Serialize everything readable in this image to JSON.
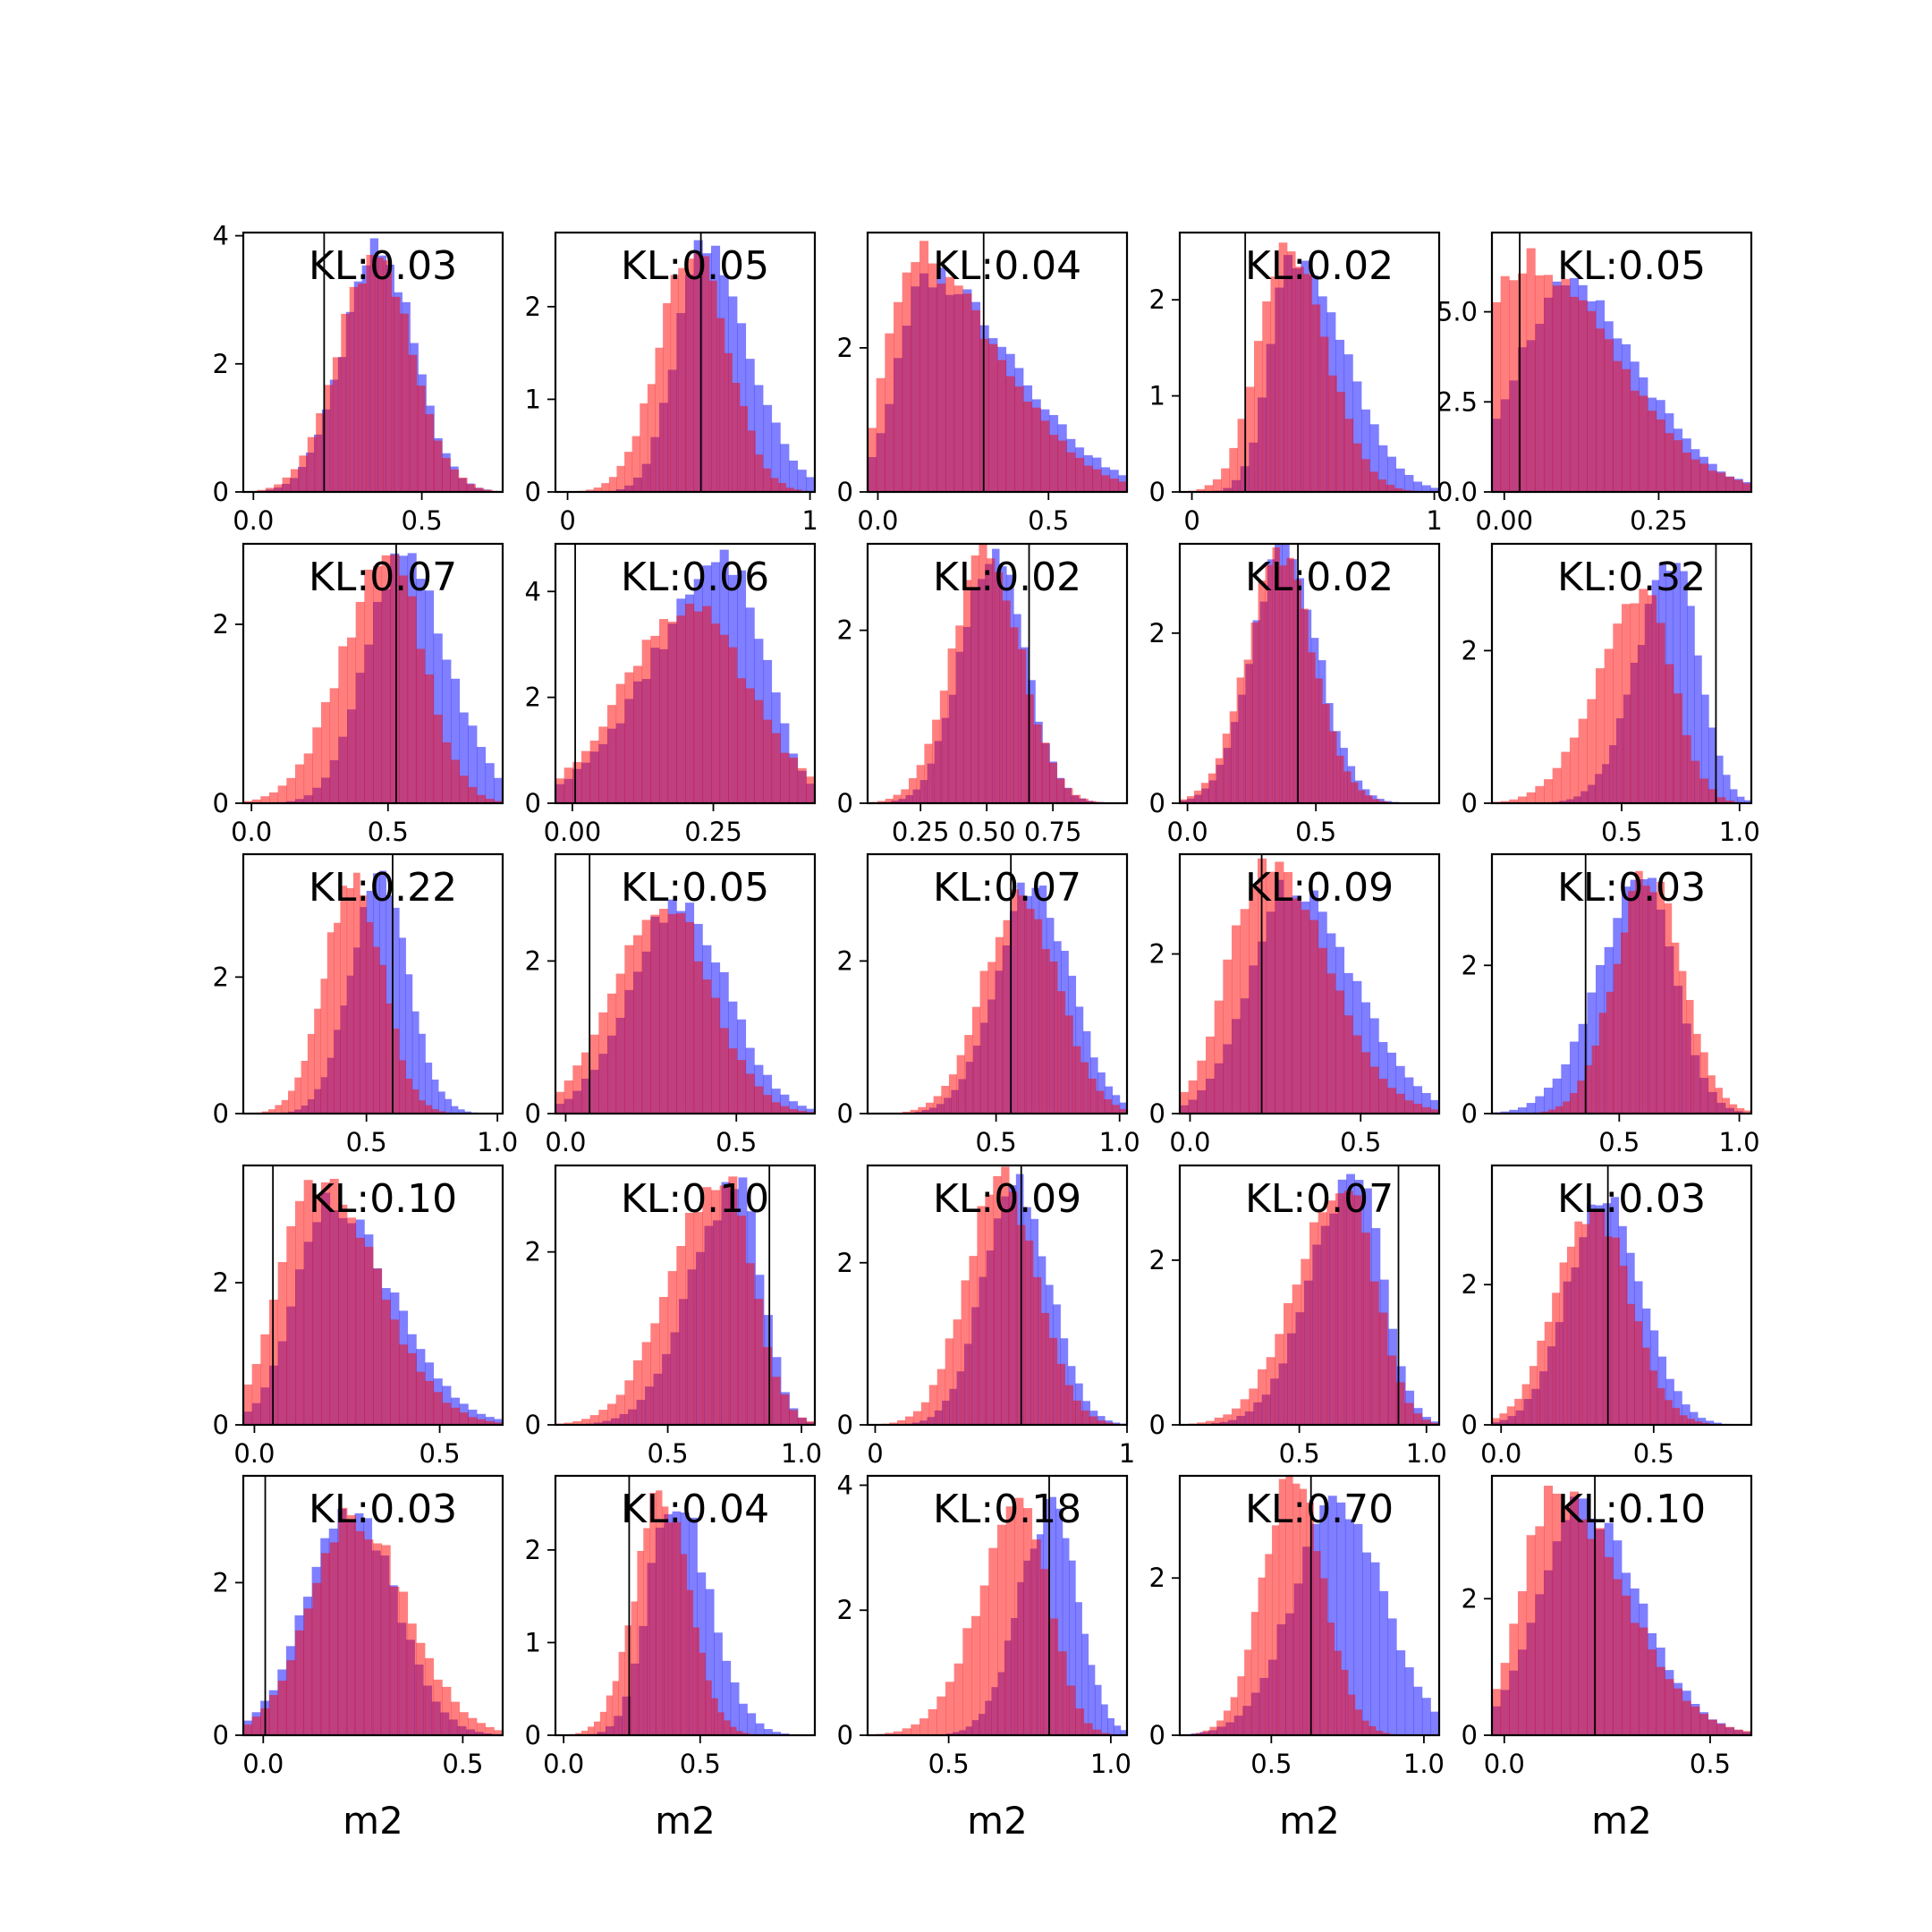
{
  "colors": {
    "red": "#ff0000",
    "blue": "#0000ff",
    "frame": "#000000"
  },
  "chart_data": {
    "type": "histogram-grid",
    "rows": 5,
    "cols": 5,
    "xlabel": "m2",
    "panels": [
      {
        "kl": "KL:0.03",
        "xlim": [
          -0.03,
          0.74
        ],
        "ylim": [
          0,
          4.05
        ],
        "xticks": [
          0,
          0.5
        ],
        "xtick_labels": [
          "0.0",
          "0.5"
        ],
        "yticks": [
          0,
          2,
          4
        ],
        "ytick_labels": [
          "0",
          "2",
          "4"
        ],
        "vline": 0.21,
        "red": {
          "mean": 0.36,
          "sd": 0.11,
          "peak": 3.6,
          "skew": 0
        },
        "blue": {
          "mean": 0.37,
          "sd": 0.105,
          "peak": 3.8,
          "skew": 0
        }
      },
      {
        "kl": "KL:0.05",
        "xlim": [
          -0.05,
          1.02
        ],
        "ylim": [
          0,
          2.8
        ],
        "xticks": [
          0,
          1
        ],
        "xtick_labels": [
          "0",
          "1"
        ],
        "yticks": [
          0,
          1,
          2
        ],
        "ytick_labels": [
          "0",
          "1",
          "2"
        ],
        "vline": 0.55,
        "red": {
          "mean": 0.52,
          "sd": 0.14,
          "peak": 2.7,
          "skew": 0
        },
        "blue": {
          "mean": 0.56,
          "sd": 0.15,
          "peak": 2.6,
          "skew": 0.4
        }
      },
      {
        "kl": "KL:0.04",
        "xlim": [
          -0.03,
          0.73
        ],
        "ylim": [
          0,
          3.6
        ],
        "xticks": [
          0,
          0.5
        ],
        "xtick_labels": [
          "0.0",
          "0.5"
        ],
        "yticks": [
          0,
          2
        ],
        "ytick_labels": [
          "0",
          "2"
        ],
        "vline": 0.31,
        "red": {
          "mean": 0.1,
          "sd": 0.16,
          "peak": 3.3,
          "skew": 0.9
        },
        "blue": {
          "mean": 0.15,
          "sd": 0.17,
          "peak": 3.0,
          "skew": 0.8
        }
      },
      {
        "kl": "KL:0.02",
        "xlim": [
          -0.05,
          1.02
        ],
        "ylim": [
          0,
          2.7
        ],
        "xticks": [
          0,
          1
        ],
        "xtick_labels": [
          "0",
          "1"
        ],
        "yticks": [
          0,
          1,
          2
        ],
        "ytick_labels": [
          "0",
          "1",
          "2"
        ],
        "vline": 0.22,
        "red": {
          "mean": 0.4,
          "sd": 0.14,
          "peak": 2.5,
          "skew": 0.2
        },
        "blue": {
          "mean": 0.42,
          "sd": 0.15,
          "peak": 2.5,
          "skew": 0.6
        }
      },
      {
        "kl": "KL:0.05",
        "xlim": [
          -0.02,
          0.4
        ],
        "ylim": [
          0,
          7.2
        ],
        "xticks": [
          0,
          0.25
        ],
        "xtick_labels": [
          "0.00",
          "0.25"
        ],
        "yticks": [
          0,
          2.5,
          5
        ],
        "ytick_labels": [
          "0.0",
          "2.5",
          "5.0"
        ],
        "vline": 0.025,
        "red": {
          "mean": 0.03,
          "sd": 0.1,
          "peak": 6.5,
          "skew": 0.7
        },
        "blue": {
          "mean": 0.1,
          "sd": 0.1,
          "peak": 5.6,
          "skew": 0.3
        }
      },
      {
        "kl": "KL:0.07",
        "xlim": [
          -0.03,
          0.92
        ],
        "ylim": [
          0,
          2.9
        ],
        "xticks": [
          0,
          0.5
        ],
        "xtick_labels": [
          "0.0",
          "0.5"
        ],
        "yticks": [
          0,
          2
        ],
        "ytick_labels": [
          "0",
          "2"
        ],
        "vline": 0.53,
        "red": {
          "mean": 0.5,
          "sd": 0.15,
          "peak": 2.7,
          "skew": -0.2
        },
        "blue": {
          "mean": 0.55,
          "sd": 0.15,
          "peak": 2.7,
          "skew": 0.2
        }
      },
      {
        "kl": "KL:0.06",
        "xlim": [
          -0.03,
          0.43
        ],
        "ylim": [
          0,
          4.9
        ],
        "xticks": [
          0,
          0.25
        ],
        "xtick_labels": [
          "0.00",
          "0.25"
        ],
        "yticks": [
          0,
          2,
          4
        ],
        "ytick_labels": [
          "0",
          "2",
          "4"
        ],
        "vline": 0.005,
        "red": {
          "mean": 0.2,
          "sd": 0.11,
          "peak": 3.7,
          "skew": 0
        },
        "blue": {
          "mean": 0.28,
          "sd": 0.1,
          "peak": 4.5,
          "skew": -0.6
        }
      },
      {
        "kl": "KL:0.02",
        "xlim": [
          0.05,
          1.03
        ],
        "ylim": [
          0,
          3.0
        ],
        "xticks": [
          0.25,
          0.5,
          0.75
        ],
        "xtick_labels": [
          "0.25",
          "0.50",
          "0.75"
        ],
        "yticks": [
          0,
          2
        ],
        "ytick_labels": [
          "0",
          "2"
        ],
        "vline": 0.66,
        "red": {
          "mean": 0.5,
          "sd": 0.13,
          "peak": 2.9,
          "skew": 0
        },
        "blue": {
          "mean": 0.52,
          "sd": 0.12,
          "peak": 2.9,
          "skew": 0
        }
      },
      {
        "kl": "KL:0.02",
        "xlim": [
          -0.03,
          0.98
        ],
        "ylim": [
          0,
          3.05
        ],
        "xticks": [
          0,
          0.5
        ],
        "xtick_labels": [
          "0.0",
          "0.5"
        ],
        "yticks": [
          0,
          2
        ],
        "ytick_labels": [
          "0",
          "2"
        ],
        "vline": 0.43,
        "red": {
          "mean": 0.36,
          "sd": 0.13,
          "peak": 2.9,
          "skew": 0
        },
        "blue": {
          "mean": 0.38,
          "sd": 0.13,
          "peak": 3.0,
          "skew": 0
        }
      },
      {
        "kl": "KL:0.32",
        "xlim": [
          -0.05,
          1.05
        ],
        "ylim": [
          0,
          3.4
        ],
        "xticks": [
          0.5,
          1
        ],
        "xtick_labels": [
          "0.5",
          "1.0"
        ],
        "yticks": [
          0,
          2
        ],
        "ytick_labels": [
          "0",
          "2"
        ],
        "vline": 0.9,
        "red": {
          "mean": 0.6,
          "sd": 0.16,
          "peak": 2.7,
          "skew": -0.4
        },
        "blue": {
          "mean": 0.72,
          "sd": 0.13,
          "peak": 3.2,
          "skew": -0.3
        }
      },
      {
        "kl": "KL:0.22",
        "xlim": [
          0.03,
          1.02
        ],
        "ylim": [
          0,
          3.8
        ],
        "xticks": [
          0.5,
          1
        ],
        "xtick_labels": [
          "0.5",
          "1.0"
        ],
        "yticks": [
          0,
          2
        ],
        "ytick_labels": [
          "0",
          "2"
        ],
        "vline": 0.6,
        "red": {
          "mean": 0.45,
          "sd": 0.11,
          "peak": 3.5,
          "skew": 0
        },
        "blue": {
          "mean": 0.55,
          "sd": 0.11,
          "peak": 3.4,
          "skew": 0
        }
      },
      {
        "kl": "KL:0.05",
        "xlim": [
          -0.03,
          0.73
        ],
        "ylim": [
          0,
          3.4
        ],
        "xticks": [
          0,
          0.5
        ],
        "xtick_labels": [
          "0.0",
          "0.5"
        ],
        "yticks": [
          0,
          2
        ],
        "ytick_labels": [
          "0",
          "2"
        ],
        "vline": 0.07,
        "red": {
          "mean": 0.28,
          "sd": 0.14,
          "peak": 2.8,
          "skew": 0
        },
        "blue": {
          "mean": 0.33,
          "sd": 0.14,
          "peak": 2.8,
          "skew": 0
        }
      },
      {
        "kl": "KL:0.07",
        "xlim": [
          -0.02,
          1.03
        ],
        "ylim": [
          0,
          3.4
        ],
        "xticks": [
          0.5,
          1
        ],
        "xtick_labels": [
          "0.5",
          "1.0"
        ],
        "yticks": [
          0,
          2
        ],
        "ytick_labels": [
          "0",
          "2"
        ],
        "vline": 0.56,
        "red": {
          "mean": 0.6,
          "sd": 0.15,
          "peak": 2.9,
          "skew": 0
        },
        "blue": {
          "mean": 0.65,
          "sd": 0.15,
          "peak": 3.0,
          "skew": 0
        }
      },
      {
        "kl": "KL:0.09",
        "xlim": [
          -0.03,
          0.73
        ],
        "ylim": [
          0,
          3.25
        ],
        "xticks": [
          0,
          0.5
        ],
        "xtick_labels": [
          "0.0",
          "0.5"
        ],
        "yticks": [
          0,
          2
        ],
        "ytick_labels": [
          "0",
          "2"
        ],
        "vline": 0.21,
        "red": {
          "mean": 0.22,
          "sd": 0.14,
          "peak": 3.2,
          "skew": 0.4
        },
        "blue": {
          "mean": 0.3,
          "sd": 0.15,
          "peak": 2.9,
          "skew": 0.3
        }
      },
      {
        "kl": "KL:0.03",
        "xlim": [
          -0.03,
          1.05
        ],
        "ylim": [
          0,
          3.5
        ],
        "xticks": [
          0.5,
          1
        ],
        "xtick_labels": [
          "0.5",
          "1.0"
        ],
        "yticks": [
          0,
          2
        ],
        "ytick_labels": [
          "0",
          "2"
        ],
        "vline": 0.36,
        "red": {
          "mean": 0.62,
          "sd": 0.14,
          "peak": 3.2,
          "skew": 0
        },
        "blue": {
          "mean": 0.6,
          "sd": 0.16,
          "peak": 3.1,
          "skew": -0.3
        }
      },
      {
        "kl": "KL:0.10",
        "xlim": [
          -0.03,
          0.67
        ],
        "ylim": [
          0,
          3.65
        ],
        "xticks": [
          0,
          0.5
        ],
        "xtick_labels": [
          "0.0",
          "0.5"
        ],
        "yticks": [
          0,
          2
        ],
        "ytick_labels": [
          "0",
          "2"
        ],
        "vline": 0.05,
        "red": {
          "mean": 0.17,
          "sd": 0.13,
          "peak": 3.4,
          "skew": 0.4
        },
        "blue": {
          "mean": 0.2,
          "sd": 0.13,
          "peak": 3.1,
          "skew": 0.5
        }
      },
      {
        "kl": "KL:0.10",
        "xlim": [
          0.08,
          1.05
        ],
        "ylim": [
          0,
          3.0
        ],
        "xticks": [
          0.5,
          1
        ],
        "xtick_labels": [
          "0.5",
          "1.0"
        ],
        "yticks": [
          0,
          2
        ],
        "ytick_labels": [
          "0",
          "2"
        ],
        "vline": 0.88,
        "red": {
          "mean": 0.7,
          "sd": 0.15,
          "peak": 2.9,
          "skew": -0.4
        },
        "blue": {
          "mean": 0.76,
          "sd": 0.13,
          "peak": 2.8,
          "skew": -0.5
        }
      },
      {
        "kl": "KL:0.09",
        "xlim": [
          -0.03,
          1.0
        ],
        "ylim": [
          0,
          3.2
        ],
        "xticks": [
          0,
          1
        ],
        "xtick_labels": [
          "0",
          "1"
        ],
        "yticks": [
          0,
          2
        ],
        "ytick_labels": [
          "0",
          "2"
        ],
        "vline": 0.58,
        "red": {
          "mean": 0.5,
          "sd": 0.14,
          "peak": 3.0,
          "skew": 0
        },
        "blue": {
          "mean": 0.56,
          "sd": 0.13,
          "peak": 3.0,
          "skew": 0
        }
      },
      {
        "kl": "KL:0.07",
        "xlim": [
          0.03,
          1.05
        ],
        "ylim": [
          0,
          3.15
        ],
        "xticks": [
          0.5,
          1
        ],
        "xtick_labels": [
          "0.5",
          "1.0"
        ],
        "yticks": [
          0,
          2
        ],
        "ytick_labels": [
          "0",
          "2"
        ],
        "vline": 0.89,
        "red": {
          "mean": 0.68,
          "sd": 0.15,
          "peak": 3.0,
          "skew": -0.4
        },
        "blue": {
          "mean": 0.72,
          "sd": 0.14,
          "peak": 3.0,
          "skew": -0.4
        }
      },
      {
        "kl": "KL:0.03",
        "xlim": [
          -0.03,
          0.82
        ],
        "ylim": [
          0,
          3.7
        ],
        "xticks": [
          0,
          0.5
        ],
        "xtick_labels": [
          "0.0",
          "0.5"
        ],
        "yticks": [
          0,
          2
        ],
        "ytick_labels": [
          "0",
          "2"
        ],
        "vline": 0.35,
        "red": {
          "mean": 0.3,
          "sd": 0.12,
          "peak": 3.1,
          "skew": 0
        },
        "blue": {
          "mean": 0.34,
          "sd": 0.12,
          "peak": 3.3,
          "skew": 0
        }
      },
      {
        "kl": "KL:0.03",
        "xlim": [
          -0.05,
          0.6
        ],
        "ylim": [
          0,
          3.4
        ],
        "xticks": [
          0,
          0.5
        ],
        "xtick_labels": [
          "0.0",
          "0.5"
        ],
        "yticks": [
          0,
          2
        ],
        "ytick_labels": [
          "0",
          "2"
        ],
        "vline": 0.005,
        "red": {
          "mean": 0.22,
          "sd": 0.12,
          "peak": 2.9,
          "skew": 0.2
        },
        "blue": {
          "mean": 0.22,
          "sd": 0.11,
          "peak": 3.0,
          "skew": 0
        }
      },
      {
        "kl": "KL:0.04",
        "xlim": [
          -0.03,
          0.92
        ],
        "ylim": [
          0,
          2.8
        ],
        "xticks": [
          0,
          0.5
        ],
        "xtick_labels": [
          "0.0",
          "0.5"
        ],
        "yticks": [
          0,
          1,
          2
        ],
        "ytick_labels": [
          "0",
          "1",
          "2"
        ],
        "vline": 0.24,
        "red": {
          "mean": 0.36,
          "sd": 0.1,
          "peak": 2.6,
          "skew": 0
        },
        "blue": {
          "mean": 0.4,
          "sd": 0.11,
          "peak": 2.6,
          "skew": 0.3
        }
      },
      {
        "kl": "KL:0.18",
        "xlim": [
          0.25,
          1.05
        ],
        "ylim": [
          0,
          4.15
        ],
        "xticks": [
          0.5,
          1
        ],
        "xtick_labels": [
          "0.5",
          "1.0"
        ],
        "yticks": [
          0,
          2,
          4
        ],
        "ytick_labels": [
          "0",
          "2",
          "4"
        ],
        "vline": 0.81,
        "red": {
          "mean": 0.73,
          "sd": 0.11,
          "peak": 3.6,
          "skew": -0.4
        },
        "blue": {
          "mean": 0.82,
          "sd": 0.09,
          "peak": 3.7,
          "skew": -0.2
        }
      },
      {
        "kl": "KL:0.70",
        "xlim": [
          0.2,
          1.05
        ],
        "ylim": [
          0,
          3.3
        ],
        "xticks": [
          0.5,
          1
        ],
        "xtick_labels": [
          "0.5",
          "1.0"
        ],
        "yticks": [
          0,
          2
        ],
        "ytick_labels": [
          "0",
          "2"
        ],
        "vline": 0.63,
        "red": {
          "mean": 0.57,
          "sd": 0.1,
          "peak": 3.3,
          "skew": 0
        },
        "blue": {
          "mean": 0.72,
          "sd": 0.15,
          "peak": 2.9,
          "skew": 0
        }
      },
      {
        "kl": "KL:0.10",
        "xlim": [
          -0.03,
          0.6
        ],
        "ylim": [
          0,
          3.8
        ],
        "xticks": [
          0,
          0.5
        ],
        "xtick_labels": [
          "0.0",
          "0.5"
        ],
        "yticks": [
          0,
          2
        ],
        "ytick_labels": [
          "0",
          "2"
        ],
        "vline": 0.22,
        "red": {
          "mean": 0.12,
          "sd": 0.12,
          "peak": 3.6,
          "skew": 0.6
        },
        "blue": {
          "mean": 0.18,
          "sd": 0.12,
          "peak": 3.4,
          "skew": 0.3
        }
      }
    ]
  }
}
